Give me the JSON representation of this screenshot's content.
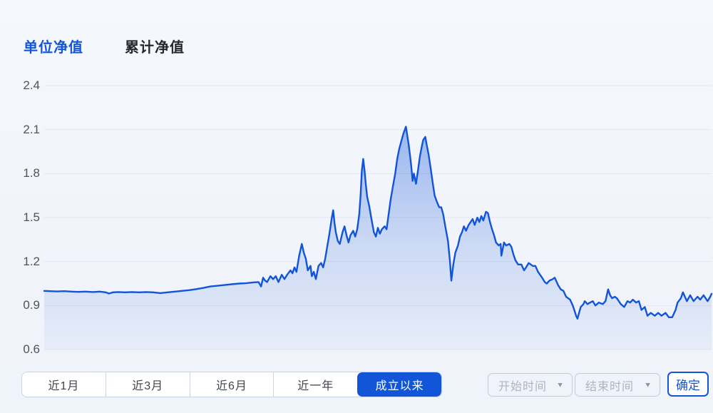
{
  "tabs": {
    "unit": "单位净值",
    "cumulative": "累计净值"
  },
  "ranges": [
    {
      "id": "1m",
      "label": "近1月",
      "active": false
    },
    {
      "id": "3m",
      "label": "近3月",
      "active": false
    },
    {
      "id": "6m",
      "label": "近6月",
      "active": false
    },
    {
      "id": "1y",
      "label": "近一年",
      "active": false
    },
    {
      "id": "inception",
      "label": "成立以来",
      "active": true
    }
  ],
  "date_filter": {
    "start_placeholder": "开始时间",
    "end_placeholder": "结束时间",
    "confirm_label": "确定"
  },
  "colors": {
    "accent": "#1355d8",
    "line": "#1254d9",
    "grid": "#e2e6ee",
    "fill_top": "rgba(19,85,216,0.40)",
    "fill_mid": "rgba(19,85,216,0.16)",
    "fill_bottom": "rgba(19,85,216,0.04)"
  },
  "chart_data": {
    "type": "area",
    "series_name": "单位净值",
    "ylim": [
      0.6,
      2.4
    ],
    "yticks": [
      2.4,
      2.1,
      1.8,
      1.5,
      1.2,
      0.9,
      0.6
    ],
    "grid": true,
    "x_unit": "percent-of-timeline",
    "points": [
      [
        0,
        1.0
      ],
      [
        0.9,
        0.998
      ],
      [
        1.9,
        0.996
      ],
      [
        3.0,
        0.998
      ],
      [
        4.1,
        0.995
      ],
      [
        5.1,
        0.993
      ],
      [
        6.2,
        0.995
      ],
      [
        7.3,
        0.992
      ],
      [
        8.3,
        0.995
      ],
      [
        9.2,
        0.99
      ],
      [
        9.7,
        0.982
      ],
      [
        10.3,
        0.99
      ],
      [
        11.1,
        0.992
      ],
      [
        12.1,
        0.99
      ],
      [
        13.1,
        0.992
      ],
      [
        14.2,
        0.99
      ],
      [
        15.3,
        0.992
      ],
      [
        16.3,
        0.99
      ],
      [
        17.4,
        0.985
      ],
      [
        18.5,
        0.99
      ],
      [
        19.6,
        0.995
      ],
      [
        20.6,
        1.0
      ],
      [
        21.7,
        1.005
      ],
      [
        22.8,
        1.012
      ],
      [
        23.8,
        1.02
      ],
      [
        24.9,
        1.03
      ],
      [
        26.0,
        1.035
      ],
      [
        27.0,
        1.04
      ],
      [
        28.1,
        1.045
      ],
      [
        29.2,
        1.05
      ],
      [
        30.2,
        1.052
      ],
      [
        31.3,
        1.058
      ],
      [
        32.1,
        1.06
      ],
      [
        32.5,
        1.03
      ],
      [
        32.8,
        1.09
      ],
      [
        33.1,
        1.07
      ],
      [
        33.4,
        1.06
      ],
      [
        33.9,
        1.1
      ],
      [
        34.3,
        1.08
      ],
      [
        34.7,
        1.1
      ],
      [
        35.1,
        1.06
      ],
      [
        35.6,
        1.11
      ],
      [
        36.0,
        1.08
      ],
      [
        36.4,
        1.11
      ],
      [
        36.9,
        1.14
      ],
      [
        37.2,
        1.12
      ],
      [
        37.5,
        1.16
      ],
      [
        37.8,
        1.13
      ],
      [
        38.2,
        1.24
      ],
      [
        38.6,
        1.32
      ],
      [
        38.9,
        1.26
      ],
      [
        39.2,
        1.22
      ],
      [
        39.5,
        1.14
      ],
      [
        39.9,
        1.17
      ],
      [
        40.1,
        1.1
      ],
      [
        40.4,
        1.13
      ],
      [
        40.7,
        1.08
      ],
      [
        41.1,
        1.17
      ],
      [
        41.5,
        1.19
      ],
      [
        41.8,
        1.16
      ],
      [
        42.1,
        1.22
      ],
      [
        42.4,
        1.3
      ],
      [
        42.7,
        1.38
      ],
      [
        43.1,
        1.5
      ],
      [
        43.3,
        1.55
      ],
      [
        43.5,
        1.46
      ],
      [
        43.7,
        1.4
      ],
      [
        44.0,
        1.34
      ],
      [
        44.3,
        1.32
      ],
      [
        44.7,
        1.4
      ],
      [
        45.0,
        1.44
      ],
      [
        45.3,
        1.38
      ],
      [
        45.6,
        1.33
      ],
      [
        45.9,
        1.38
      ],
      [
        46.3,
        1.41
      ],
      [
        46.6,
        1.37
      ],
      [
        46.9,
        1.42
      ],
      [
        47.2,
        1.52
      ],
      [
        47.4,
        1.65
      ],
      [
        47.6,
        1.82
      ],
      [
        47.8,
        1.9
      ],
      [
        48.0,
        1.82
      ],
      [
        48.2,
        1.72
      ],
      [
        48.4,
        1.64
      ],
      [
        48.7,
        1.58
      ],
      [
        49.0,
        1.5
      ],
      [
        49.4,
        1.4
      ],
      [
        49.7,
        1.37
      ],
      [
        50.0,
        1.43
      ],
      [
        50.3,
        1.39
      ],
      [
        50.6,
        1.42
      ],
      [
        51.0,
        1.44
      ],
      [
        51.3,
        1.42
      ],
      [
        51.6,
        1.52
      ],
      [
        51.9,
        1.62
      ],
      [
        52.2,
        1.7
      ],
      [
        52.6,
        1.8
      ],
      [
        52.9,
        1.9
      ],
      [
        53.2,
        1.97
      ],
      [
        53.5,
        2.02
      ],
      [
        53.8,
        2.07
      ],
      [
        54.2,
        2.12
      ],
      [
        54.4,
        2.06
      ],
      [
        54.6,
        2.0
      ],
      [
        54.8,
        1.93
      ],
      [
        55.0,
        1.85
      ],
      [
        55.2,
        1.75
      ],
      [
        55.4,
        1.8
      ],
      [
        55.7,
        1.73
      ],
      [
        56.0,
        1.82
      ],
      [
        56.3,
        1.92
      ],
      [
        56.6,
        1.99
      ],
      [
        56.8,
        2.03
      ],
      [
        57.1,
        2.05
      ],
      [
        57.3,
        2.0
      ],
      [
        57.6,
        1.93
      ],
      [
        57.9,
        1.84
      ],
      [
        58.2,
        1.74
      ],
      [
        58.5,
        1.65
      ],
      [
        58.9,
        1.6
      ],
      [
        59.2,
        1.57
      ],
      [
        59.5,
        1.57
      ],
      [
        59.8,
        1.52
      ],
      [
        60.1,
        1.44
      ],
      [
        60.5,
        1.34
      ],
      [
        60.8,
        1.2
      ],
      [
        61.0,
        1.07
      ],
      [
        61.3,
        1.18
      ],
      [
        61.6,
        1.26
      ],
      [
        62.0,
        1.31
      ],
      [
        62.3,
        1.37
      ],
      [
        62.6,
        1.4
      ],
      [
        62.9,
        1.44
      ],
      [
        63.2,
        1.41
      ],
      [
        63.6,
        1.45
      ],
      [
        63.9,
        1.47
      ],
      [
        64.2,
        1.49
      ],
      [
        64.5,
        1.45
      ],
      [
        64.9,
        1.5
      ],
      [
        65.2,
        1.47
      ],
      [
        65.5,
        1.51
      ],
      [
        65.8,
        1.48
      ],
      [
        66.2,
        1.54
      ],
      [
        66.5,
        1.53
      ],
      [
        66.8,
        1.47
      ],
      [
        67.1,
        1.42
      ],
      [
        67.4,
        1.38
      ],
      [
        67.7,
        1.33
      ],
      [
        68.1,
        1.31
      ],
      [
        68.4,
        1.32
      ],
      [
        68.5,
        1.24
      ],
      [
        68.9,
        1.33
      ],
      [
        69.2,
        1.31
      ],
      [
        69.7,
        1.32
      ],
      [
        70.0,
        1.3
      ],
      [
        70.3,
        1.25
      ],
      [
        70.6,
        1.21
      ],
      [
        71.0,
        1.18
      ],
      [
        71.5,
        1.18
      ],
      [
        71.9,
        1.14
      ],
      [
        72.2,
        1.16
      ],
      [
        72.6,
        1.19
      ],
      [
        73.2,
        1.17
      ],
      [
        73.6,
        1.17
      ],
      [
        74.0,
        1.13
      ],
      [
        74.6,
        1.09
      ],
      [
        75.0,
        1.06
      ],
      [
        75.3,
        1.05
      ],
      [
        75.7,
        1.07
      ],
      [
        76.2,
        1.08
      ],
      [
        76.5,
        1.09
      ],
      [
        76.8,
        1.06
      ],
      [
        77.0,
        1.04
      ],
      [
        77.4,
        1.01
      ],
      [
        77.8,
        1.0
      ],
      [
        78.2,
        0.96
      ],
      [
        78.5,
        0.95
      ],
      [
        78.8,
        0.94
      ],
      [
        79.2,
        0.9
      ],
      [
        79.5,
        0.86
      ],
      [
        79.7,
        0.83
      ],
      [
        79.9,
        0.81
      ],
      [
        80.2,
        0.86
      ],
      [
        80.4,
        0.89
      ],
      [
        80.8,
        0.91
      ],
      [
        81.0,
        0.93
      ],
      [
        81.4,
        0.91
      ],
      [
        81.8,
        0.92
      ],
      [
        82.2,
        0.93
      ],
      [
        82.6,
        0.9
      ],
      [
        83.1,
        0.92
      ],
      [
        83.7,
        0.91
      ],
      [
        84.1,
        0.93
      ],
      [
        84.5,
        1.01
      ],
      [
        84.8,
        0.97
      ],
      [
        85.1,
        0.95
      ],
      [
        85.5,
        0.96
      ],
      [
        85.8,
        0.95
      ],
      [
        86.1,
        0.93
      ],
      [
        86.4,
        0.91
      ],
      [
        86.9,
        0.89
      ],
      [
        87.4,
        0.93
      ],
      [
        87.8,
        0.92
      ],
      [
        88.2,
        0.94
      ],
      [
        88.7,
        0.92
      ],
      [
        89.1,
        0.93
      ],
      [
        89.5,
        0.87
      ],
      [
        90.0,
        0.89
      ],
      [
        90.4,
        0.83
      ],
      [
        90.9,
        0.85
      ],
      [
        91.5,
        0.83
      ],
      [
        92.0,
        0.85
      ],
      [
        92.5,
        0.83
      ],
      [
        93.1,
        0.85
      ],
      [
        93.6,
        0.82
      ],
      [
        94.1,
        0.82
      ],
      [
        94.6,
        0.87
      ],
      [
        94.9,
        0.92
      ],
      [
        95.4,
        0.95
      ],
      [
        95.7,
        0.99
      ],
      [
        96.3,
        0.93
      ],
      [
        96.8,
        0.97
      ],
      [
        97.3,
        0.93
      ],
      [
        97.9,
        0.96
      ],
      [
        98.3,
        0.94
      ],
      [
        98.8,
        0.97
      ],
      [
        99.4,
        0.93
      ],
      [
        99.8,
        0.96
      ],
      [
        100,
        0.98
      ]
    ]
  }
}
